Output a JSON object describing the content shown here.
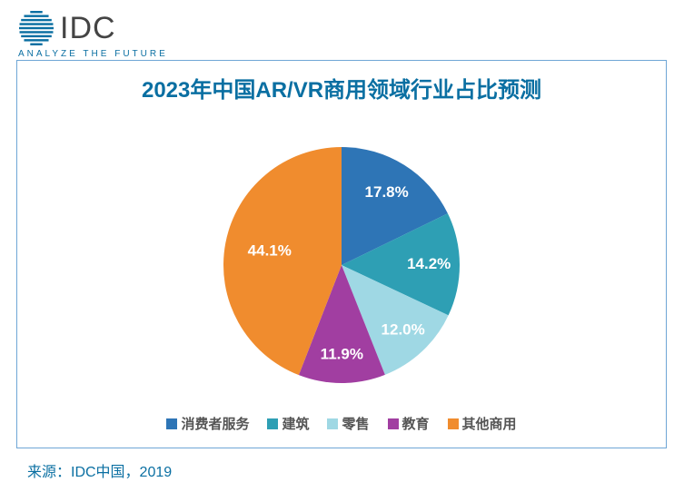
{
  "logo": {
    "text": "IDC",
    "text_color": "#444444",
    "text_fontsize": 34,
    "text_fontweight": 400,
    "tagline": "ANALYZE THE FUTURE",
    "tagline_color": "#0a6fa2",
    "tagline_fontsize": 10,
    "stripe_color": "#0a6fa2"
  },
  "chart": {
    "type": "pie",
    "title": "2023年中国AR/VR商用领域行业占比预测",
    "title_color": "#0a6fa2",
    "title_fontsize": 24,
    "title_fontweight": 700,
    "border_color": "#6fa6d6",
    "background": "#ffffff",
    "radius": 130,
    "start_angle_deg": 0,
    "label_fontsize": 17,
    "label_fontweight": 700,
    "label_color": "#ffffff",
    "slices": [
      {
        "label": "消费者服务",
        "value": 17.8,
        "display": "17.8%",
        "color": "#2e75b6",
        "label_r": 0.72
      },
      {
        "label": "建筑",
        "value": 14.2,
        "display": "14.2%",
        "color": "#2e9fb4",
        "label_r": 0.74
      },
      {
        "label": "零售",
        "value": 12.0,
        "display": "12.0%",
        "color": "#9fd8e4",
        "label_r": 0.76
      },
      {
        "label": "教育",
        "value": 11.9,
        "display": "11.9%",
        "color": "#a13ea1",
        "label_r": 0.76
      },
      {
        "label": "其他商用",
        "value": 44.1,
        "display": "44.1%",
        "color": "#f08c2e",
        "label_r": 0.62
      }
    ],
    "legend": {
      "fontsize": 15,
      "swatch_size": 12,
      "text_color": "#555555",
      "items": [
        {
          "label": "消费者服务",
          "color": "#2e75b6"
        },
        {
          "label": "建筑",
          "color": "#2e9fb4"
        },
        {
          "label": "零售",
          "color": "#9fd8e4"
        },
        {
          "label": "教育",
          "color": "#a13ea1"
        },
        {
          "label": "其他商用",
          "color": "#f08c2e"
        }
      ]
    }
  },
  "source": {
    "text": "来源：IDC中国，2019",
    "color": "#0a6fa2",
    "fontsize": 16
  }
}
